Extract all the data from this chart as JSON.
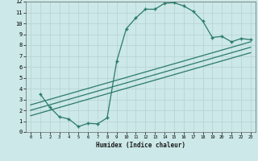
{
  "xlabel": "Humidex (Indice chaleur)",
  "bg_color": "#cce8e8",
  "grid_color": "#b8d4d4",
  "line_color": "#2a7a6a",
  "xlim": [
    -0.5,
    23.5
  ],
  "ylim": [
    0,
    12
  ],
  "xticks": [
    0,
    1,
    2,
    3,
    4,
    5,
    6,
    7,
    8,
    9,
    10,
    11,
    12,
    13,
    14,
    15,
    16,
    17,
    18,
    19,
    20,
    21,
    22,
    23
  ],
  "yticks": [
    0,
    1,
    2,
    3,
    4,
    5,
    6,
    7,
    8,
    9,
    10,
    11,
    12
  ],
  "curve_x": [
    1,
    2,
    3,
    4,
    5,
    6,
    7,
    8,
    9,
    10,
    11,
    12,
    13,
    14,
    15,
    16,
    17,
    18,
    19,
    20,
    21,
    22,
    23
  ],
  "curve_y": [
    3.5,
    2.3,
    1.4,
    1.2,
    0.5,
    0.8,
    0.75,
    1.3,
    6.5,
    9.5,
    10.5,
    11.3,
    11.3,
    11.85,
    11.9,
    11.6,
    11.1,
    10.2,
    8.7,
    8.8,
    8.3,
    8.6,
    8.5
  ],
  "line1_x": [
    0,
    23
  ],
  "line1_y": [
    2.5,
    8.3
  ],
  "line2_x": [
    0,
    23
  ],
  "line2_y": [
    2.0,
    7.8
  ],
  "line3_x": [
    0,
    23
  ],
  "line3_y": [
    1.5,
    7.3
  ]
}
